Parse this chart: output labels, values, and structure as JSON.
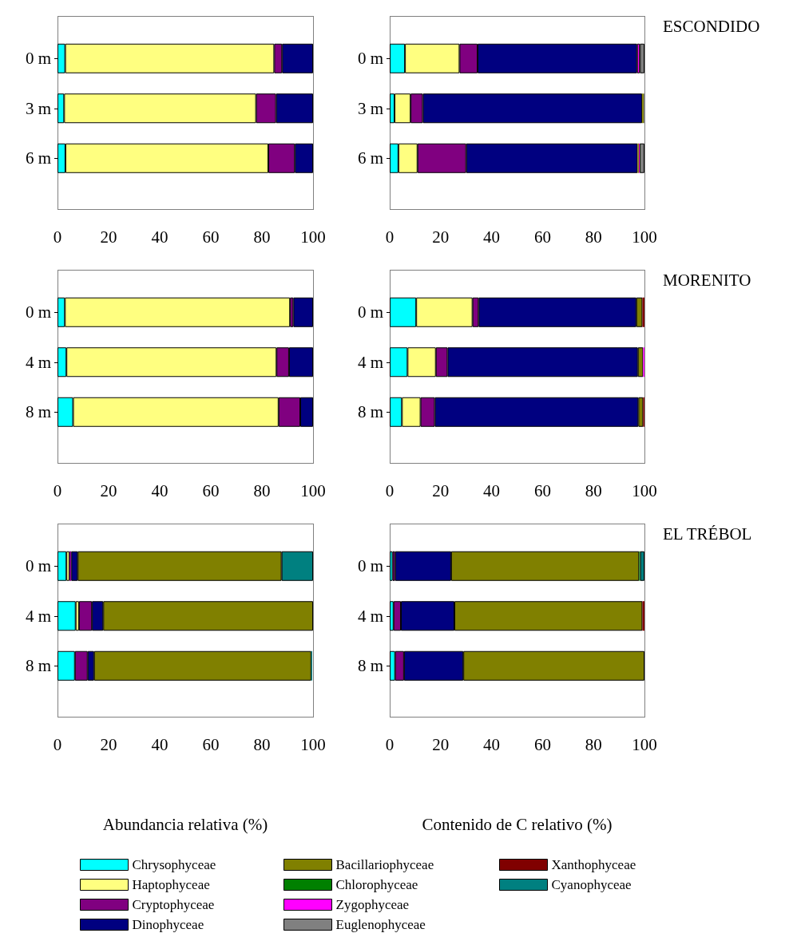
{
  "chart_data": [
    {
      "type": "bar",
      "orientation": "horizontal",
      "stacked": true,
      "categories": [
        "0 m",
        "3 m",
        "6 m"
      ],
      "xlim": [
        0,
        100
      ],
      "xticks": [
        0,
        20,
        40,
        60,
        80,
        100
      ],
      "grid": false,
      "series": [
        {
          "color": "#00ffff",
          "values": [
            3.0,
            2.6,
            3.1
          ]
        },
        {
          "color": "#ffff80",
          "values": [
            81.8,
            75.1,
            79.4
          ]
        },
        {
          "color": "#800080",
          "values": [
            3.1,
            7.8,
            10.4
          ]
        },
        {
          "color": "#000080",
          "values": [
            12.1,
            14.5,
            7.1
          ]
        }
      ]
    },
    {
      "type": "bar",
      "orientation": "horizontal",
      "stacked": true,
      "annotations": [
        "ESCONDIDO"
      ],
      "categories": [
        "0 m",
        "3 m",
        "6 m"
      ],
      "xlim": [
        0,
        100
      ],
      "xticks": [
        0,
        20,
        40,
        60,
        80,
        100
      ],
      "grid": false,
      "series": [
        {
          "color": "#00ffff",
          "values": [
            6.0,
            1.9,
            3.4
          ]
        },
        {
          "color": "#ffff80",
          "values": [
            21.4,
            6.3,
            7.5
          ]
        },
        {
          "color": "#800080",
          "values": [
            7.1,
            4.8,
            19.1
          ]
        },
        {
          "color": "#000080",
          "values": [
            62.6,
            86.1,
            67.3
          ]
        },
        {
          "color": "#808000",
          "values": [
            null,
            0.6,
            0.5
          ]
        },
        {
          "color": "#ff00ff",
          "values": [
            1.1,
            null,
            0.3
          ]
        },
        {
          "color": "#808080",
          "values": [
            1.8,
            0.3,
            1.9
          ]
        }
      ]
    },
    {
      "type": "bar",
      "orientation": "horizontal",
      "stacked": true,
      "categories": [
        "0 m",
        "4 m",
        "8 m"
      ],
      "xlim": [
        0,
        100
      ],
      "xticks": [
        0,
        20,
        40,
        60,
        80,
        100
      ],
      "grid": false,
      "series": [
        {
          "color": "#00ffff",
          "values": [
            2.9,
            3.5,
            6.1
          ]
        },
        {
          "color": "#ffff80",
          "values": [
            88.1,
            82.2,
            80.4
          ]
        },
        {
          "color": "#800080",
          "values": [
            1.3,
            4.9,
            8.5
          ]
        },
        {
          "color": "#000080",
          "values": [
            7.7,
            9.4,
            5.0
          ]
        }
      ]
    },
    {
      "type": "bar",
      "orientation": "horizontal",
      "stacked": true,
      "annotations": [
        "MORENITO"
      ],
      "categories": [
        "0 m",
        "4 m",
        "8 m"
      ],
      "xlim": [
        0,
        100
      ],
      "xticks": [
        0,
        20,
        40,
        60,
        80,
        100
      ],
      "grid": false,
      "series": [
        {
          "color": "#00ffff",
          "values": [
            10.4,
            7.0,
            4.8
          ]
        },
        {
          "color": "#ffff80",
          "values": [
            22.1,
            11.1,
            7.3
          ]
        },
        {
          "color": "#800080",
          "values": [
            2.4,
            4.6,
            5.6
          ]
        },
        {
          "color": "#000080",
          "values": [
            61.9,
            74.7,
            79.9
          ]
        },
        {
          "color": "#808000",
          "values": [
            2.4,
            2.1,
            1.9
          ]
        },
        {
          "color": "#ff00ff",
          "values": [
            null,
            0.5,
            null
          ]
        },
        {
          "color": "#800000",
          "values": [
            0.8,
            null,
            0.5
          ]
        }
      ]
    },
    {
      "type": "bar",
      "orientation": "horizontal",
      "stacked": true,
      "xlabel": "Abundancia relativa (%)",
      "categories": [
        "0 m",
        "4 m",
        "8 m"
      ],
      "xlim": [
        0,
        100
      ],
      "xticks": [
        0,
        20,
        40,
        60,
        80,
        100
      ],
      "grid": false,
      "series": [
        {
          "color": "#00ffff",
          "values": [
            3.5,
            7.1,
            6.8
          ]
        },
        {
          "color": "#ffff80",
          "values": [
            1.2,
            1.3,
            null
          ]
        },
        {
          "color": "#800080",
          "values": [
            0.7,
            5.1,
            5.0
          ]
        },
        {
          "color": "#000080",
          "values": [
            2.5,
            4.4,
            2.5
          ]
        },
        {
          "color": "#808000",
          "values": [
            79.8,
            82.1,
            85.0
          ]
        },
        {
          "color": "#008080",
          "values": [
            12.3,
            null,
            0.4
          ]
        }
      ]
    },
    {
      "type": "bar",
      "orientation": "horizontal",
      "stacked": true,
      "annotations": [
        "EL TRÉBOL"
      ],
      "xlabel": "Contenido de C relativo (%)",
      "categories": [
        "0 m",
        "4 m",
        "8 m"
      ],
      "xlim": [
        0,
        100
      ],
      "xticks": [
        0,
        20,
        40,
        60,
        80,
        100
      ],
      "grid": false,
      "legend": "bottom",
      "series": [
        {
          "name": "Chrysophyceae",
          "color": "#00ffff",
          "values": [
            1.1,
            1.5,
            2.1
          ]
        },
        {
          "name": "Haptophyceae",
          "color": "#ffff80",
          "values": [
            null,
            null,
            null
          ]
        },
        {
          "name": "Cryptophyceae",
          "color": "#800080",
          "values": [
            1.0,
            2.9,
            3.5
          ]
        },
        {
          "name": "Dinophyceae",
          "color": "#000080",
          "values": [
            22.0,
            21.0,
            23.3
          ]
        },
        {
          "name": "Bacillariophyceae",
          "color": "#808000",
          "values": [
            73.8,
            73.8,
            71.1
          ]
        },
        {
          "name": "Chlorophyceae",
          "color": "#008000",
          "values": [
            0.4,
            null,
            null
          ]
        },
        {
          "name": "Zygophyceae",
          "color": "#ff00ff",
          "values": [
            null,
            null,
            null
          ]
        },
        {
          "name": "Euglenophyceae",
          "color": "#808080",
          "values": [
            null,
            null,
            null
          ]
        },
        {
          "name": "Xanthophyceae",
          "color": "#800000",
          "values": [
            null,
            0.8,
            null
          ]
        },
        {
          "name": "Cyanophyceae",
          "color": "#008080",
          "values": [
            1.7,
            null,
            null
          ]
        }
      ]
    }
  ]
}
